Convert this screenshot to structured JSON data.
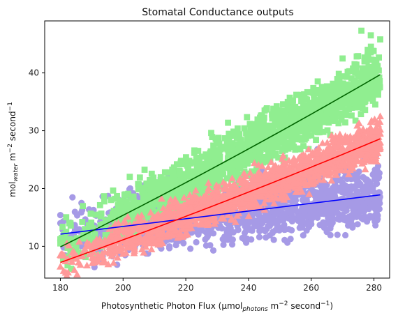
{
  "chart_data": {
    "type": "scatter",
    "title": "Stomatal Conductance outputs",
    "xlabel": {
      "prefix": "Photosynthetic Photon Flux (μmol",
      "sub": "photons",
      "mid": " m",
      "sup1": "−2",
      "mid2": " second",
      "sup2": "−1",
      "suffix": ")"
    },
    "ylabel": {
      "prefix": "mol",
      "sub": "water",
      "mid": " m",
      "sup1": "−2",
      "mid2": " second",
      "sup2": "−1"
    },
    "xlim": [
      175,
      285
    ],
    "ylim": [
      4.5,
      49
    ],
    "xticks": [
      180,
      200,
      220,
      240,
      260,
      280
    ],
    "yticks": [
      10,
      20,
      30,
      40
    ],
    "series": [
      {
        "marker": "circle",
        "color": "#a69ae6",
        "x_range": [
          180,
          282
        ],
        "fit": {
          "color": "#0000ff",
          "x": [
            180,
            282
          ],
          "y": [
            12.1,
            18.9
          ]
        },
        "spread_below": 4.5,
        "spread_above": 5.5,
        "outliers": [
          [
            180,
            15.4
          ],
          [
            180,
            14.0
          ],
          [
            180,
            11.0
          ],
          [
            205,
            20.5
          ],
          [
            212,
            21.8
          ],
          [
            228,
            23.5
          ],
          [
            243,
            25.2
          ],
          [
            262,
            26.8
          ],
          [
            276,
            27.0
          ],
          [
            281,
            14.5
          ]
        ]
      },
      {
        "marker": "square",
        "color": "#90ee90",
        "x_range": [
          180,
          282
        ],
        "fit": {
          "color": "#006400",
          "x": [
            180,
            282
          ],
          "y": [
            9.9,
            39.7
          ]
        },
        "spread_below": 4.0,
        "spread_above": 4.5,
        "outliers": [
          [
            180,
            11.2
          ],
          [
            180,
            10.5
          ],
          [
            276,
            47.3
          ],
          [
            279,
            46.5
          ],
          [
            282,
            45.8
          ],
          [
            281,
            36.7
          ],
          [
            270,
            42.5
          ]
        ]
      },
      {
        "marker": "triangle",
        "color": "#ff9999",
        "x_range": [
          180,
          282
        ],
        "fit": {
          "color": "#ff0000",
          "x": [
            180,
            282
          ],
          "y": [
            7.2,
            28.6
          ]
        },
        "spread_below": 3.0,
        "spread_above": 3.0,
        "outliers": [
          [
            180,
            6.5
          ],
          [
            180,
            8.5
          ],
          [
            282,
            32.5
          ],
          [
            282,
            28.0
          ],
          [
            279,
            30.5
          ]
        ]
      }
    ],
    "grid": false
  }
}
